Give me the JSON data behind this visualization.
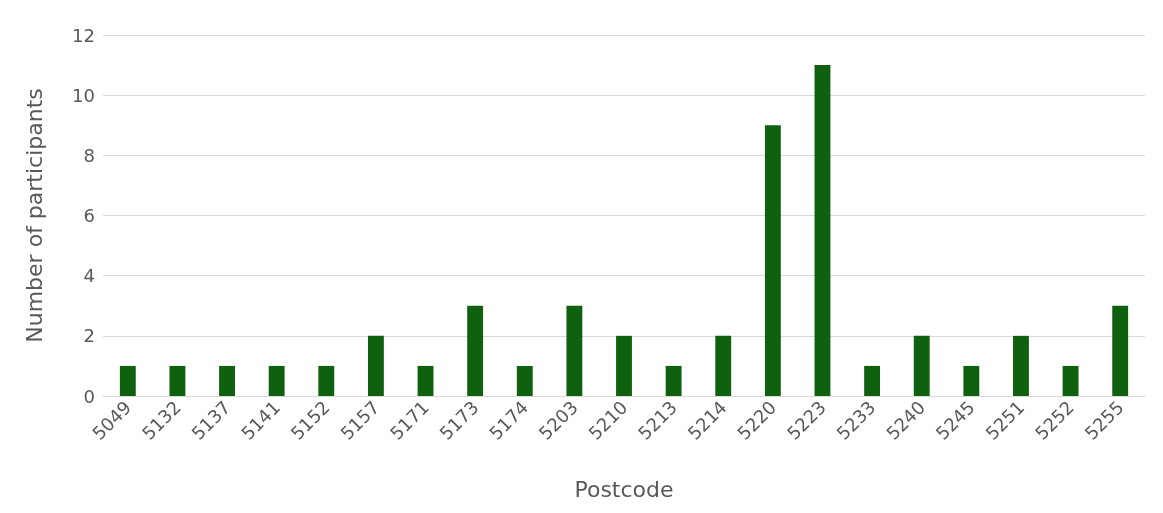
{
  "chart_data": {
    "type": "bar",
    "xlabel": "Postcode",
    "ylabel": "Number of participants",
    "categories": [
      "5049",
      "5132",
      "5137",
      "5141",
      "5152",
      "5157",
      "5171",
      "5173",
      "5174",
      "5203",
      "5210",
      "5213",
      "5214",
      "5220",
      "5223",
      "5233",
      "5240",
      "5245",
      "5251",
      "5252",
      "5255"
    ],
    "values": [
      1,
      1,
      1,
      1,
      1,
      2,
      1,
      3,
      1,
      3,
      2,
      1,
      2,
      9,
      11,
      1,
      2,
      1,
      2,
      1,
      3
    ],
    "color": "#0f600f",
    "ylim": [
      0,
      12
    ],
    "yticks": [
      0,
      2,
      4,
      6,
      8,
      10,
      12
    ],
    "grid": "y"
  }
}
